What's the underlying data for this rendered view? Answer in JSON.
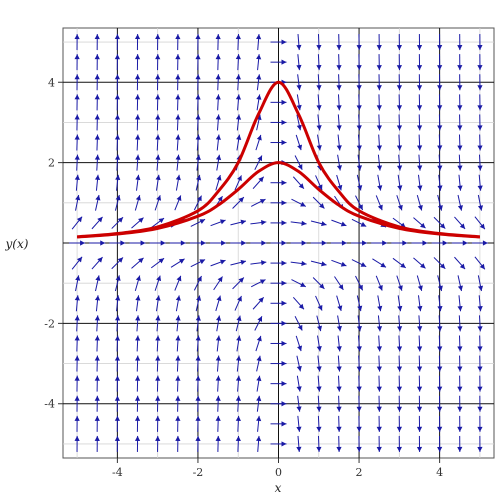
{
  "chart_data": {
    "type": "direction_field",
    "title": "",
    "xlabel": "x",
    "ylabel": "y(x)",
    "xlim": [
      -5.35,
      5.35
    ],
    "ylim": [
      -5.35,
      5.35
    ],
    "x_ticks": [
      -4,
      -2,
      0,
      2,
      4
    ],
    "y_ticks": [
      -4,
      -2,
      2,
      4
    ],
    "x_tick_labels": [
      "-4",
      "-2",
      "0",
      "2",
      "4"
    ],
    "y_tick_labels": [
      "-4",
      "-2",
      "2",
      "4"
    ],
    "grid": true,
    "minor_grid": true,
    "field": {
      "equation": "dy/dx = -x*y^2",
      "x_range": [
        -5,
        5
      ],
      "y_range": [
        -5,
        5
      ],
      "count": 21,
      "color": "#1a1aa6"
    },
    "series": [
      {
        "x": [
          -5,
          -4,
          -3,
          -2,
          -1.5,
          -1,
          -0.5,
          0,
          0.5,
          1,
          1.5,
          2,
          3,
          4,
          5
        ],
        "y": [
          0.153846,
          0.235294,
          0.4,
          0.8,
          1.28,
          2.0,
          3.2,
          4.0,
          3.2,
          2.0,
          1.28,
          0.8,
          0.4,
          0.235294,
          0.153846
        ],
        "color": "#cc0000"
      },
      {
        "x": [
          -5,
          -4,
          -3,
          -2,
          -1.5,
          -1,
          -0.5,
          0,
          0.5,
          1,
          1.5,
          2,
          3,
          4,
          5
        ],
        "y": [
          0.148148,
          0.222222,
          0.363636,
          0.666667,
          0.941176,
          1.333333,
          1.777778,
          2.0,
          1.777778,
          1.333333,
          0.941176,
          0.666667,
          0.363636,
          0.222222,
          0.148148
        ],
        "color": "#cc0000"
      }
    ]
  }
}
